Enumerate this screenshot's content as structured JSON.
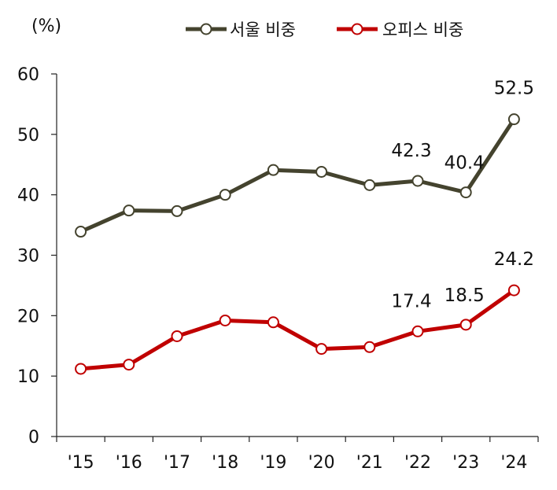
{
  "chart_data": {
    "type": "line",
    "title": "",
    "unit_label": "(%)",
    "categories": [
      "'15",
      "'16",
      "'17",
      "'18",
      "'19",
      "'20",
      "'21",
      "'22",
      "'23",
      "'24"
    ],
    "ylim": [
      0,
      60
    ],
    "yticks": [
      "0",
      "10",
      "20",
      "30",
      "40",
      "50",
      "60"
    ],
    "grid": false,
    "legend_position": "top-right",
    "series": [
      {
        "name": "서울 비중",
        "color": "#44432e",
        "values": [
          33.9,
          37.4,
          37.3,
          40.0,
          44.1,
          43.8,
          41.6,
          42.3,
          40.4,
          52.5
        ],
        "labels": [
          {
            "index": 7,
            "text": "42.3"
          },
          {
            "index": 8,
            "text": "40.4"
          },
          {
            "index": 9,
            "text": "52.5"
          }
        ]
      },
      {
        "name": "오피스 비중",
        "color": "#c00000",
        "values": [
          11.2,
          11.9,
          16.6,
          19.2,
          18.9,
          14.5,
          14.8,
          17.4,
          18.5,
          24.2
        ],
        "labels": [
          {
            "index": 7,
            "text": "17.4"
          },
          {
            "index": 8,
            "text": "18.5"
          },
          {
            "index": 9,
            "text": "24.2"
          }
        ]
      }
    ]
  }
}
